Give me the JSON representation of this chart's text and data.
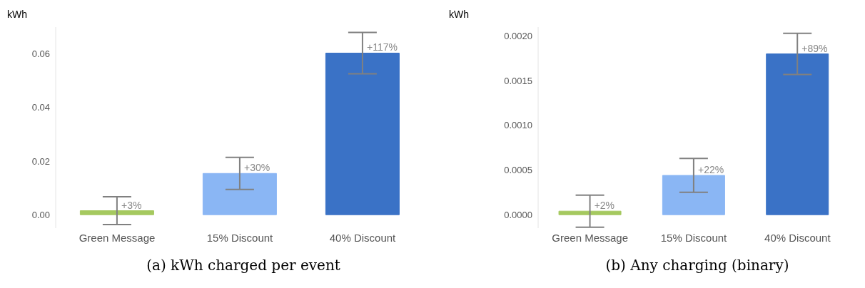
{
  "chart_data": [
    {
      "type": "bar",
      "title": "(a) kWh charged per event",
      "ylabel": "kWh",
      "categories": [
        "Green Message",
        "15% Discount",
        "40% Discount"
      ],
      "values": [
        0.0015,
        0.0154,
        0.0603
      ],
      "colors": [
        "#a5c95f",
        "#8ab6f4",
        "#3a72c6"
      ],
      "errors": [
        0.0052,
        0.006,
        0.0077
      ],
      "annotations": [
        {
          "text": "+3%",
          "x": "Green Message",
          "y": 0.0015
        },
        {
          "text": "+30%",
          "x": "15% Discount",
          "y": 0.0154
        },
        {
          "text": "+117%",
          "x": "40% Discount",
          "y": 0.0603
        }
      ],
      "ylim": [
        -0.005,
        0.07
      ],
      "yticks": [
        {
          "value": 0,
          "label": "0.00"
        },
        {
          "value": 0.02,
          "label": "0.02"
        },
        {
          "value": 0.04,
          "label": "0.04"
        },
        {
          "value": 0.06,
          "label": "0.06"
        }
      ],
      "grid": false
    },
    {
      "type": "bar",
      "title": "(b) Any charging (binary)",
      "ylabel": "kWh",
      "categories": [
        "Green Message",
        "15% Discount",
        "40% Discount"
      ],
      "values": [
        4e-05,
        0.00044,
        0.0018
      ],
      "colors": [
        "#a5c95f",
        "#8ab6f4",
        "#3a72c6"
      ],
      "errors": [
        0.00018,
        0.00019,
        0.00023
      ],
      "annotations": [
        {
          "text": "+2%",
          "x": "Green Message",
          "y": 4e-05
        },
        {
          "text": "+22%",
          "x": "15% Discount",
          "y": 0.00044
        },
        {
          "text": "+89%",
          "x": "40% Discount",
          "y": 0.0018
        }
      ],
      "ylim": [
        -0.00015,
        0.0021
      ],
      "yticks": [
        {
          "value": 0,
          "label": "0.0000"
        },
        {
          "value": 0.0005,
          "label": "0.0005"
        },
        {
          "value": 0.001,
          "label": "0.0010"
        },
        {
          "value": 0.0015,
          "label": "0.0015"
        },
        {
          "value": 0.002,
          "label": "0.0020"
        }
      ],
      "grid": false
    }
  ]
}
